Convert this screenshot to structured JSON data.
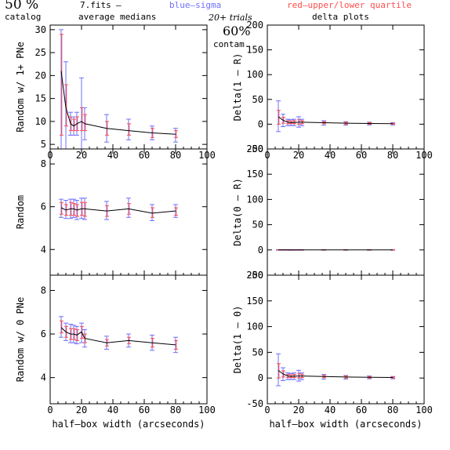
{
  "header": {
    "percent": "50 %",
    "catalog": "catalog",
    "filename": "7.fits",
    "dash": "–",
    "averages": "average medians",
    "blue_label": "blue–sigma",
    "red_label": "red–upper/lower quartile",
    "trials": "20+ trials",
    "contam_pct": "60%",
    "contam": "contam.",
    "delta_title": "delta plots"
  },
  "colors": {
    "median": "#000000",
    "sigma": "#6f6fff",
    "quartile": "#ff4d4d"
  },
  "chart_data": [
    {
      "type": "line",
      "panel": "left-top",
      "ylabel": "Random w/ 1+ PNe",
      "xlabel": "",
      "xlim": [
        0,
        100
      ],
      "ylim": [
        4,
        31
      ],
      "xticks": [
        0,
        20,
        40,
        60,
        80,
        100
      ],
      "show_xtick_labels": true,
      "yticks": [
        5,
        10,
        15,
        20,
        25,
        30
      ],
      "x": [
        7,
        10,
        13,
        15,
        17,
        20,
        22,
        36,
        50,
        65,
        80
      ],
      "y": [
        21,
        13,
        9.5,
        9,
        9.5,
        10,
        9.5,
        8.5,
        8,
        7.5,
        7.2
      ],
      "sigma_lo": [
        4,
        4,
        7,
        7,
        7,
        4,
        6,
        5.5,
        6,
        6,
        5.5
      ],
      "sigma_hi": [
        30,
        23,
        12,
        11,
        12,
        19.5,
        13,
        11.5,
        10.5,
        9,
        8.5
      ],
      "quart_lo": [
        7,
        9,
        8,
        8,
        8,
        8,
        8,
        7,
        7,
        6.5,
        6.5
      ],
      "quart_hi": [
        29,
        18,
        11,
        10.5,
        11,
        13,
        11.5,
        10,
        9.5,
        8.5,
        8
      ]
    },
    {
      "type": "line",
      "panel": "right-top",
      "ylabel": "Delta(1 – R)",
      "xlabel": "",
      "xlim": [
        0,
        100
      ],
      "ylim": [
        -50,
        200
      ],
      "xticks": [
        0,
        20,
        40,
        60,
        80,
        100
      ],
      "show_xtick_labels": true,
      "yticks": [
        -50,
        0,
        50,
        100,
        150,
        200
      ],
      "x": [
        7,
        10,
        13,
        15,
        17,
        20,
        22,
        36,
        50,
        65,
        80
      ],
      "y": [
        15,
        8,
        4,
        3,
        3.5,
        4,
        4,
        3,
        2,
        1.5,
        1
      ],
      "sigma_lo": [
        -15,
        -5,
        -3,
        -3,
        -3,
        -6,
        -3,
        -2,
        -2,
        -1.5,
        -1.5
      ],
      "sigma_hi": [
        47,
        20,
        10,
        9,
        10,
        15,
        10,
        7,
        5,
        4,
        3
      ],
      "quart_lo": [
        0,
        2,
        1,
        1,
        1,
        0,
        1,
        1,
        0,
        0,
        0
      ],
      "quart_hi": [
        28,
        14,
        7,
        6,
        7,
        9,
        7,
        5,
        4,
        3,
        2
      ]
    },
    {
      "type": "line",
      "panel": "left-middle",
      "ylabel": "Random",
      "xlabel": "",
      "xlim": [
        0,
        100
      ],
      "ylim": [
        2.8,
        8.7
      ],
      "xticks": [
        0,
        20,
        40,
        60,
        80,
        100
      ],
      "show_xtick_labels": false,
      "yticks": [
        4,
        6,
        8
      ],
      "x": [
        7,
        10,
        13,
        15,
        17,
        20,
        22,
        36,
        50,
        65,
        80
      ],
      "y": [
        5.95,
        5.85,
        5.9,
        5.9,
        5.85,
        5.9,
        5.9,
        5.8,
        5.9,
        5.7,
        5.8
      ],
      "sigma_lo": [
        5.5,
        5.45,
        5.45,
        5.5,
        5.4,
        5.45,
        5.4,
        5.4,
        5.5,
        5.35,
        5.5
      ],
      "sigma_hi": [
        6.35,
        6.3,
        6.35,
        6.35,
        6.3,
        6.4,
        6.4,
        6.25,
        6.4,
        6.1,
        6.1
      ],
      "quart_lo": [
        5.65,
        5.6,
        5.6,
        5.6,
        5.55,
        5.6,
        5.55,
        5.55,
        5.65,
        5.5,
        5.6
      ],
      "quart_hi": [
        6.2,
        6.1,
        6.2,
        6.15,
        6.1,
        6.2,
        6.2,
        6.05,
        6.15,
        5.95,
        5.95
      ]
    },
    {
      "type": "line",
      "panel": "right-middle",
      "ylabel": "Delta(0 – R)",
      "xlabel": "",
      "xlim": [
        0,
        100
      ],
      "ylim": [
        -50,
        200
      ],
      "xticks": [
        0,
        20,
        40,
        60,
        80,
        100
      ],
      "show_xtick_labels": false,
      "yticks": [
        -50,
        0,
        50,
        100,
        150,
        200
      ],
      "x": [
        7,
        10,
        13,
        15,
        17,
        20,
        22,
        36,
        50,
        65,
        80
      ],
      "y": [
        0,
        0,
        0,
        0,
        0,
        0,
        0,
        0,
        0,
        0,
        0
      ],
      "sigma_lo": [
        -0.6,
        -0.6,
        -0.6,
        -0.6,
        -0.6,
        -0.6,
        -0.6,
        -0.6,
        -0.6,
        -0.6,
        -0.6
      ],
      "sigma_hi": [
        0.6,
        0.6,
        0.6,
        0.6,
        0.6,
        0.6,
        0.6,
        0.6,
        0.6,
        0.6,
        0.6
      ],
      "quart_lo": [
        -0.3,
        -0.3,
        -0.3,
        -0.3,
        -0.3,
        -0.3,
        -0.3,
        -0.3,
        -0.3,
        -0.3,
        -0.3
      ],
      "quart_hi": [
        0.3,
        0.3,
        0.3,
        0.3,
        0.3,
        0.3,
        0.3,
        0.3,
        0.3,
        0.3,
        0.3
      ]
    },
    {
      "type": "line",
      "panel": "left-bottom",
      "ylabel": "Random w/ 0 PNe",
      "xlabel": "half–box width (arcseconds)",
      "xlim": [
        0,
        100
      ],
      "ylim": [
        2.8,
        8.7
      ],
      "xticks": [
        0,
        20,
        40,
        60,
        80,
        100
      ],
      "show_xtick_labels": true,
      "yticks": [
        4,
        6,
        8
      ],
      "x": [
        7,
        10,
        13,
        15,
        17,
        20,
        22,
        36,
        50,
        65,
        80
      ],
      "y": [
        6.3,
        6.1,
        6.0,
        6.0,
        5.95,
        6.1,
        5.8,
        5.6,
        5.7,
        5.6,
        5.5
      ],
      "sigma_lo": [
        5.85,
        5.7,
        5.6,
        5.6,
        5.55,
        5.6,
        5.4,
        5.3,
        5.4,
        5.25,
        5.15
      ],
      "sigma_hi": [
        6.8,
        6.5,
        6.45,
        6.4,
        6.35,
        6.5,
        6.2,
        5.9,
        6.0,
        5.95,
        5.85
      ],
      "quart_lo": [
        6.05,
        5.85,
        5.75,
        5.75,
        5.7,
        5.8,
        5.6,
        5.45,
        5.55,
        5.4,
        5.3
      ],
      "quart_hi": [
        6.6,
        6.35,
        6.25,
        6.25,
        6.2,
        6.35,
        6.0,
        5.75,
        5.85,
        5.8,
        5.7
      ]
    },
    {
      "type": "line",
      "panel": "right-bottom",
      "ylabel": "Delta(1 – 0)",
      "xlabel": "half–box width (arcseconds)",
      "xlim": [
        0,
        100
      ],
      "ylim": [
        -50,
        200
      ],
      "xticks": [
        0,
        20,
        40,
        60,
        80,
        100
      ],
      "show_xtick_labels": true,
      "yticks": [
        -50,
        0,
        50,
        100,
        150,
        200
      ],
      "x": [
        7,
        10,
        13,
        15,
        17,
        20,
        22,
        36,
        50,
        65,
        80
      ],
      "y": [
        15,
        8,
        4,
        3,
        3.5,
        4,
        4,
        3,
        2,
        1.5,
        1
      ],
      "sigma_lo": [
        -15,
        -5,
        -3,
        -3,
        -3,
        -6,
        -3,
        -2,
        -2,
        -1.5,
        -1.5
      ],
      "sigma_hi": [
        47,
        20,
        10,
        9,
        10,
        15,
        10,
        7,
        5,
        4,
        3
      ],
      "quart_lo": [
        0,
        2,
        1,
        1,
        1,
        0,
        1,
        1,
        0,
        0,
        0
      ],
      "quart_hi": [
        28,
        14,
        7,
        6,
        7,
        9,
        7,
        5,
        4,
        3,
        2
      ]
    }
  ]
}
